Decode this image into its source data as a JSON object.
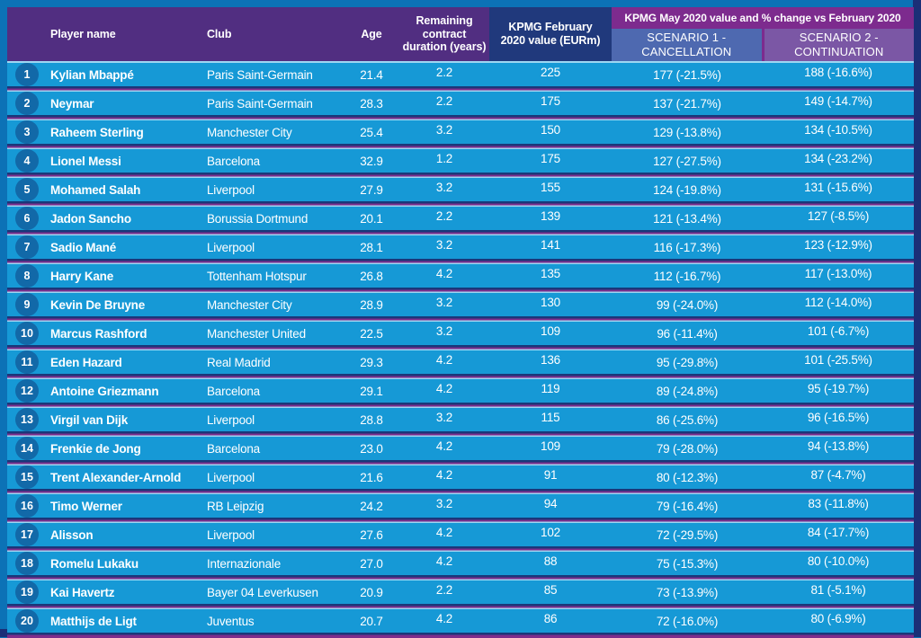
{
  "colors": {
    "frame_blue": "#0C72B6",
    "frame_dark_edge": "#1B2F77",
    "header_purple": "#512E81",
    "feb_column_blue": "#20397C",
    "may_band_purple": "#7D2B8E",
    "scenario1_blue": "#4E69B0",
    "scenario2_purple": "#7B57A5",
    "row_blue": "#1699D6",
    "rank_circle_blue": "#1269A8",
    "separator_navy": "#1A3779",
    "separator_magenta": "#7E2D8C",
    "separator_light": "#9ED7F2",
    "text": "#FFFFFF"
  },
  "chart_data": {
    "type": "table",
    "columns": [
      "Player name",
      "Club",
      "Age",
      "Remaining contract duration (years)",
      "KPMG February 2020 value (EURm)"
    ],
    "may_group_label": "KPMG May 2020 value and % change vs February 2020",
    "scenario1_label": "SCENARIO 1 - CANCELLATION",
    "scenario2_label": "SCENARIO 2 - CONTINUATION",
    "rows": [
      {
        "rank": "1",
        "player": "Kylian Mbappé",
        "club": "Paris Saint-Germain",
        "age": "21.4",
        "contract": "2.2",
        "feb_value": "225",
        "scenario1": "177 (-21.5%)",
        "scenario2": "188 (-16.6%)"
      },
      {
        "rank": "2",
        "player": "Neymar",
        "club": "Paris Saint-Germain",
        "age": "28.3",
        "contract": "2.2",
        "feb_value": "175",
        "scenario1": "137 (-21.7%)",
        "scenario2": "149 (-14.7%)"
      },
      {
        "rank": "3",
        "player": "Raheem Sterling",
        "club": "Manchester City",
        "age": "25.4",
        "contract": "3.2",
        "feb_value": "150",
        "scenario1": "129 (-13.8%)",
        "scenario2": "134 (-10.5%)"
      },
      {
        "rank": "4",
        "player": "Lionel Messi",
        "club": "Barcelona",
        "age": "32.9",
        "contract": "1.2",
        "feb_value": "175",
        "scenario1": "127 (-27.5%)",
        "scenario2": "134 (-23.2%)"
      },
      {
        "rank": "5",
        "player": "Mohamed Salah",
        "club": "Liverpool",
        "age": "27.9",
        "contract": "3.2",
        "feb_value": "155",
        "scenario1": "124 (-19.8%)",
        "scenario2": "131 (-15.6%)"
      },
      {
        "rank": "6",
        "player": "Jadon Sancho",
        "club": "Borussia Dortmund",
        "age": "20.1",
        "contract": "2.2",
        "feb_value": "139",
        "scenario1": "121 (-13.4%)",
        "scenario2": "127 (-8.5%)"
      },
      {
        "rank": "7",
        "player": "Sadio Mané",
        "club": "Liverpool",
        "age": "28.1",
        "contract": "3.2",
        "feb_value": "141",
        "scenario1": "116 (-17.3%)",
        "scenario2": "123 (-12.9%)"
      },
      {
        "rank": "8",
        "player": "Harry Kane",
        "club": "Tottenham Hotspur",
        "age": "26.8",
        "contract": "4.2",
        "feb_value": "135",
        "scenario1": "112 (-16.7%)",
        "scenario2": "117 (-13.0%)"
      },
      {
        "rank": "9",
        "player": "Kevin De Bruyne",
        "club": "Manchester City",
        "age": "28.9",
        "contract": "3.2",
        "feb_value": "130",
        "scenario1": "99 (-24.0%)",
        "scenario2": "112 (-14.0%)"
      },
      {
        "rank": "10",
        "player": "Marcus Rashford",
        "club": "Manchester United",
        "age": "22.5",
        "contract": "3.2",
        "feb_value": "109",
        "scenario1": "96 (-11.4%)",
        "scenario2": "101 (-6.7%)"
      },
      {
        "rank": "11",
        "player": "Eden Hazard",
        "club": "Real Madrid",
        "age": "29.3",
        "contract": "4.2",
        "feb_value": "136",
        "scenario1": "95 (-29.8%)",
        "scenario2": "101 (-25.5%)"
      },
      {
        "rank": "12",
        "player": "Antoine Griezmann",
        "club": "Barcelona",
        "age": "29.1",
        "contract": "4.2",
        "feb_value": "119",
        "scenario1": "89 (-24.8%)",
        "scenario2": "95 (-19.7%)"
      },
      {
        "rank": "13",
        "player": "Virgil van Dijk",
        "club": "Liverpool",
        "age": "28.8",
        "contract": "3.2",
        "feb_value": "115",
        "scenario1": "86 (-25.6%)",
        "scenario2": "96 (-16.5%)"
      },
      {
        "rank": "14",
        "player": "Frenkie de Jong",
        "club": "Barcelona",
        "age": "23.0",
        "contract": "4.2",
        "feb_value": "109",
        "scenario1": "79 (-28.0%)",
        "scenario2": "94 (-13.8%)"
      },
      {
        "rank": "15",
        "player": "Trent Alexander-Arnold",
        "club": "Liverpool",
        "age": "21.6",
        "contract": "4.2",
        "feb_value": "91",
        "scenario1": "80 (-12.3%)",
        "scenario2": "87 (-4.7%)"
      },
      {
        "rank": "16",
        "player": "Timo Werner",
        "club": "RB Leipzig",
        "age": "24.2",
        "contract": "3.2",
        "feb_value": "94",
        "scenario1": "79 (-16.4%)",
        "scenario2": "83 (-11.8%)"
      },
      {
        "rank": "17",
        "player": "Alisson",
        "club": "Liverpool",
        "age": "27.6",
        "contract": "4.2",
        "feb_value": "102",
        "scenario1": "72 (-29.5%)",
        "scenario2": "84 (-17.7%)"
      },
      {
        "rank": "18",
        "player": "Romelu Lukaku",
        "club": "Internazionale",
        "age": "27.0",
        "contract": "4.2",
        "feb_value": "88",
        "scenario1": "75 (-15.3%)",
        "scenario2": "80 (-10.0%)"
      },
      {
        "rank": "19",
        "player": "Kai Havertz",
        "club": "Bayer 04 Leverkusen",
        "age": "20.9",
        "contract": "2.2",
        "feb_value": "85",
        "scenario1": "73 (-13.9%)",
        "scenario2": "81 (-5.1%)"
      },
      {
        "rank": "20",
        "player": "Matthijs de Ligt",
        "club": "Juventus",
        "age": "20.7",
        "contract": "4.2",
        "feb_value": "86",
        "scenario1": "72 (-16.0%)",
        "scenario2": "80 (-6.9%)"
      }
    ]
  }
}
